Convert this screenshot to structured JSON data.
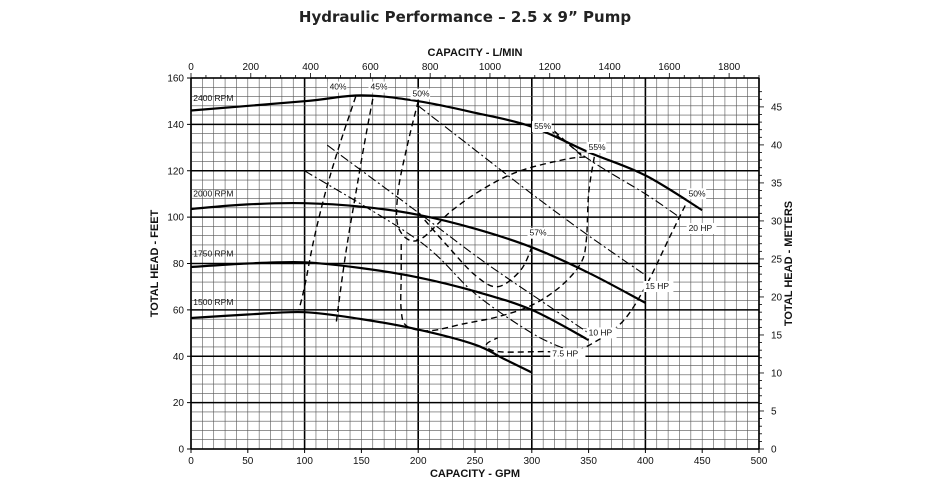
{
  "chart_data": {
    "type": "line",
    "title": "Hydraulic Performance – 2.5 x 9” Pump",
    "xlabel": "CAPACITY - GPM",
    "ylabel": "TOTAL HEAD - FEET",
    "x2label": "CAPACITY - L/MIN",
    "y2label": "TOTAL HEAD - METERS",
    "xlim": [
      0,
      500
    ],
    "ylim": [
      0,
      160
    ],
    "x2lim": [
      0,
      1900
    ],
    "y2lim": [
      0,
      48.8
    ],
    "xticks": [
      "0",
      "50",
      "100",
      "150",
      "200",
      "250",
      "300",
      "350",
      "400",
      "450",
      "500"
    ],
    "yticks": [
      "0",
      "20",
      "40",
      "60",
      "80",
      "100",
      "120",
      "140",
      "160"
    ],
    "x2ticks": [
      "0",
      "200",
      "400",
      "600",
      "800",
      "1000",
      "1200",
      "1400",
      "1600",
      "1800"
    ],
    "y2ticks": [
      "0",
      "5",
      "10",
      "15",
      "20",
      "25",
      "30",
      "35",
      "40",
      "45"
    ],
    "grid": true,
    "series": [
      {
        "name": "2400 RPM",
        "type": "speed",
        "label_at": [
          2,
          150
        ],
        "points": [
          [
            0,
            146
          ],
          [
            100,
            150
          ],
          [
            150,
            152.5
          ],
          [
            200,
            150
          ],
          [
            250,
            145
          ],
          [
            300,
            139
          ],
          [
            350,
            128
          ],
          [
            400,
            118
          ],
          [
            450,
            103
          ]
        ]
      },
      {
        "name": "2000 RPM",
        "type": "speed",
        "label_at": [
          2,
          109
        ],
        "points": [
          [
            0,
            103.5
          ],
          [
            50,
            105.5
          ],
          [
            100,
            106
          ],
          [
            150,
            104.5
          ],
          [
            200,
            101
          ],
          [
            250,
            95
          ],
          [
            300,
            87
          ],
          [
            350,
            76
          ],
          [
            400,
            63
          ]
        ]
      },
      {
        "name": "1750 RPM",
        "type": "speed",
        "label_at": [
          2,
          83
        ],
        "points": [
          [
            0,
            78.5
          ],
          [
            50,
            80
          ],
          [
            100,
            80.5
          ],
          [
            150,
            78
          ],
          [
            200,
            74
          ],
          [
            250,
            68
          ],
          [
            300,
            60
          ],
          [
            350,
            47
          ]
        ]
      },
      {
        "name": "1500 RPM",
        "type": "speed",
        "label_at": [
          2,
          62
        ],
        "points": [
          [
            0,
            56.5
          ],
          [
            50,
            58
          ],
          [
            100,
            59
          ],
          [
            150,
            56
          ],
          [
            200,
            51.5
          ],
          [
            250,
            45
          ],
          [
            275,
            39
          ],
          [
            300,
            33
          ]
        ]
      },
      {
        "name": "40%",
        "type": "efficiency",
        "label_at": [
          122,
          155
        ],
        "points": [
          [
            145,
            152
          ],
          [
            130,
            130
          ],
          [
            118,
            110
          ],
          [
            108,
            90
          ],
          [
            100,
            70
          ],
          [
            95,
            60
          ]
        ]
      },
      {
        "name": "45%",
        "type": "efficiency",
        "label_at": [
          158,
          155
        ],
        "points": [
          [
            160,
            151
          ],
          [
            152,
            130
          ],
          [
            145,
            110
          ],
          [
            138,
            90
          ],
          [
            132,
            70
          ],
          [
            128,
            55
          ]
        ]
      },
      {
        "name": "50%",
        "type": "efficiency",
        "label_at": [
          195,
          152
        ],
        "points": [
          [
            200,
            150
          ],
          [
            190,
            130
          ],
          [
            182,
            110
          ],
          [
            183,
            95
          ],
          [
            200,
            90
          ],
          [
            230,
            103
          ],
          [
            260,
            113
          ],
          [
            290,
            120
          ],
          [
            330,
            125
          ],
          [
            350,
            126
          ]
        ]
      },
      {
        "name": "55%",
        "type": "efficiency",
        "label_at": [
          302,
          138
        ],
        "points": [
          [
            320,
            137
          ],
          [
            345,
            126
          ]
        ]
      },
      {
        "name": "55%",
        "type": "efficiency",
        "label_at": [
          350,
          129
        ],
        "points": [
          [
            355,
            126
          ],
          [
            350,
            110
          ],
          [
            348,
            90
          ],
          [
            343,
            80
          ],
          [
            325,
            70
          ],
          [
            300,
            62
          ],
          [
            270,
            57
          ],
          [
            240,
            54
          ],
          [
            210,
            51
          ],
          [
            190,
            53
          ],
          [
            185,
            60
          ],
          [
            185,
            75
          ],
          [
            185,
            90
          ]
        ]
      },
      {
        "name": "57%",
        "type": "efficiency",
        "label_at": [
          298,
          92
        ],
        "points": [
          [
            200,
            102
          ],
          [
            225,
            88
          ],
          [
            250,
            75
          ],
          [
            270,
            70
          ],
          [
            290,
            77
          ],
          [
            300,
            87
          ]
        ]
      },
      {
        "name": "50%",
        "type": "efficiency",
        "label_at": [
          438,
          109
        ],
        "points": [
          [
            435,
            105
          ],
          [
            420,
            90
          ],
          [
            400,
            70
          ],
          [
            380,
            55
          ],
          [
            355,
            46
          ],
          [
            335,
            42
          ],
          [
            310,
            42
          ],
          [
            270,
            42
          ],
          [
            260,
            45
          ],
          [
            270,
            48
          ]
        ]
      },
      {
        "name": "7.5 HP",
        "type": "power",
        "label_at": [
          318,
          40
        ],
        "points": [
          [
            100,
            120
          ],
          [
            200,
            90
          ],
          [
            250,
            67
          ],
          [
            300,
            50
          ],
          [
            330,
            43
          ]
        ]
      },
      {
        "name": "10 HP",
        "type": "power",
        "label_at": [
          350,
          49
        ],
        "points": [
          [
            120,
            131
          ],
          [
            200,
            102
          ],
          [
            260,
            80
          ],
          [
            320,
            60
          ],
          [
            350,
            50
          ]
        ]
      },
      {
        "name": "15 HP",
        "type": "power",
        "label_at": [
          400,
          69
        ],
        "points": [
          [
            200,
            148
          ],
          [
            250,
            129
          ],
          [
            300,
            110
          ],
          [
            350,
            92
          ],
          [
            400,
            75
          ]
        ]
      },
      {
        "name": "20 HP",
        "type": "power",
        "label_at": [
          438,
          94
        ],
        "points": [
          [
            310,
            140
          ],
          [
            350,
            125
          ],
          [
            400,
            110
          ],
          [
            430,
            100
          ]
        ]
      }
    ]
  }
}
